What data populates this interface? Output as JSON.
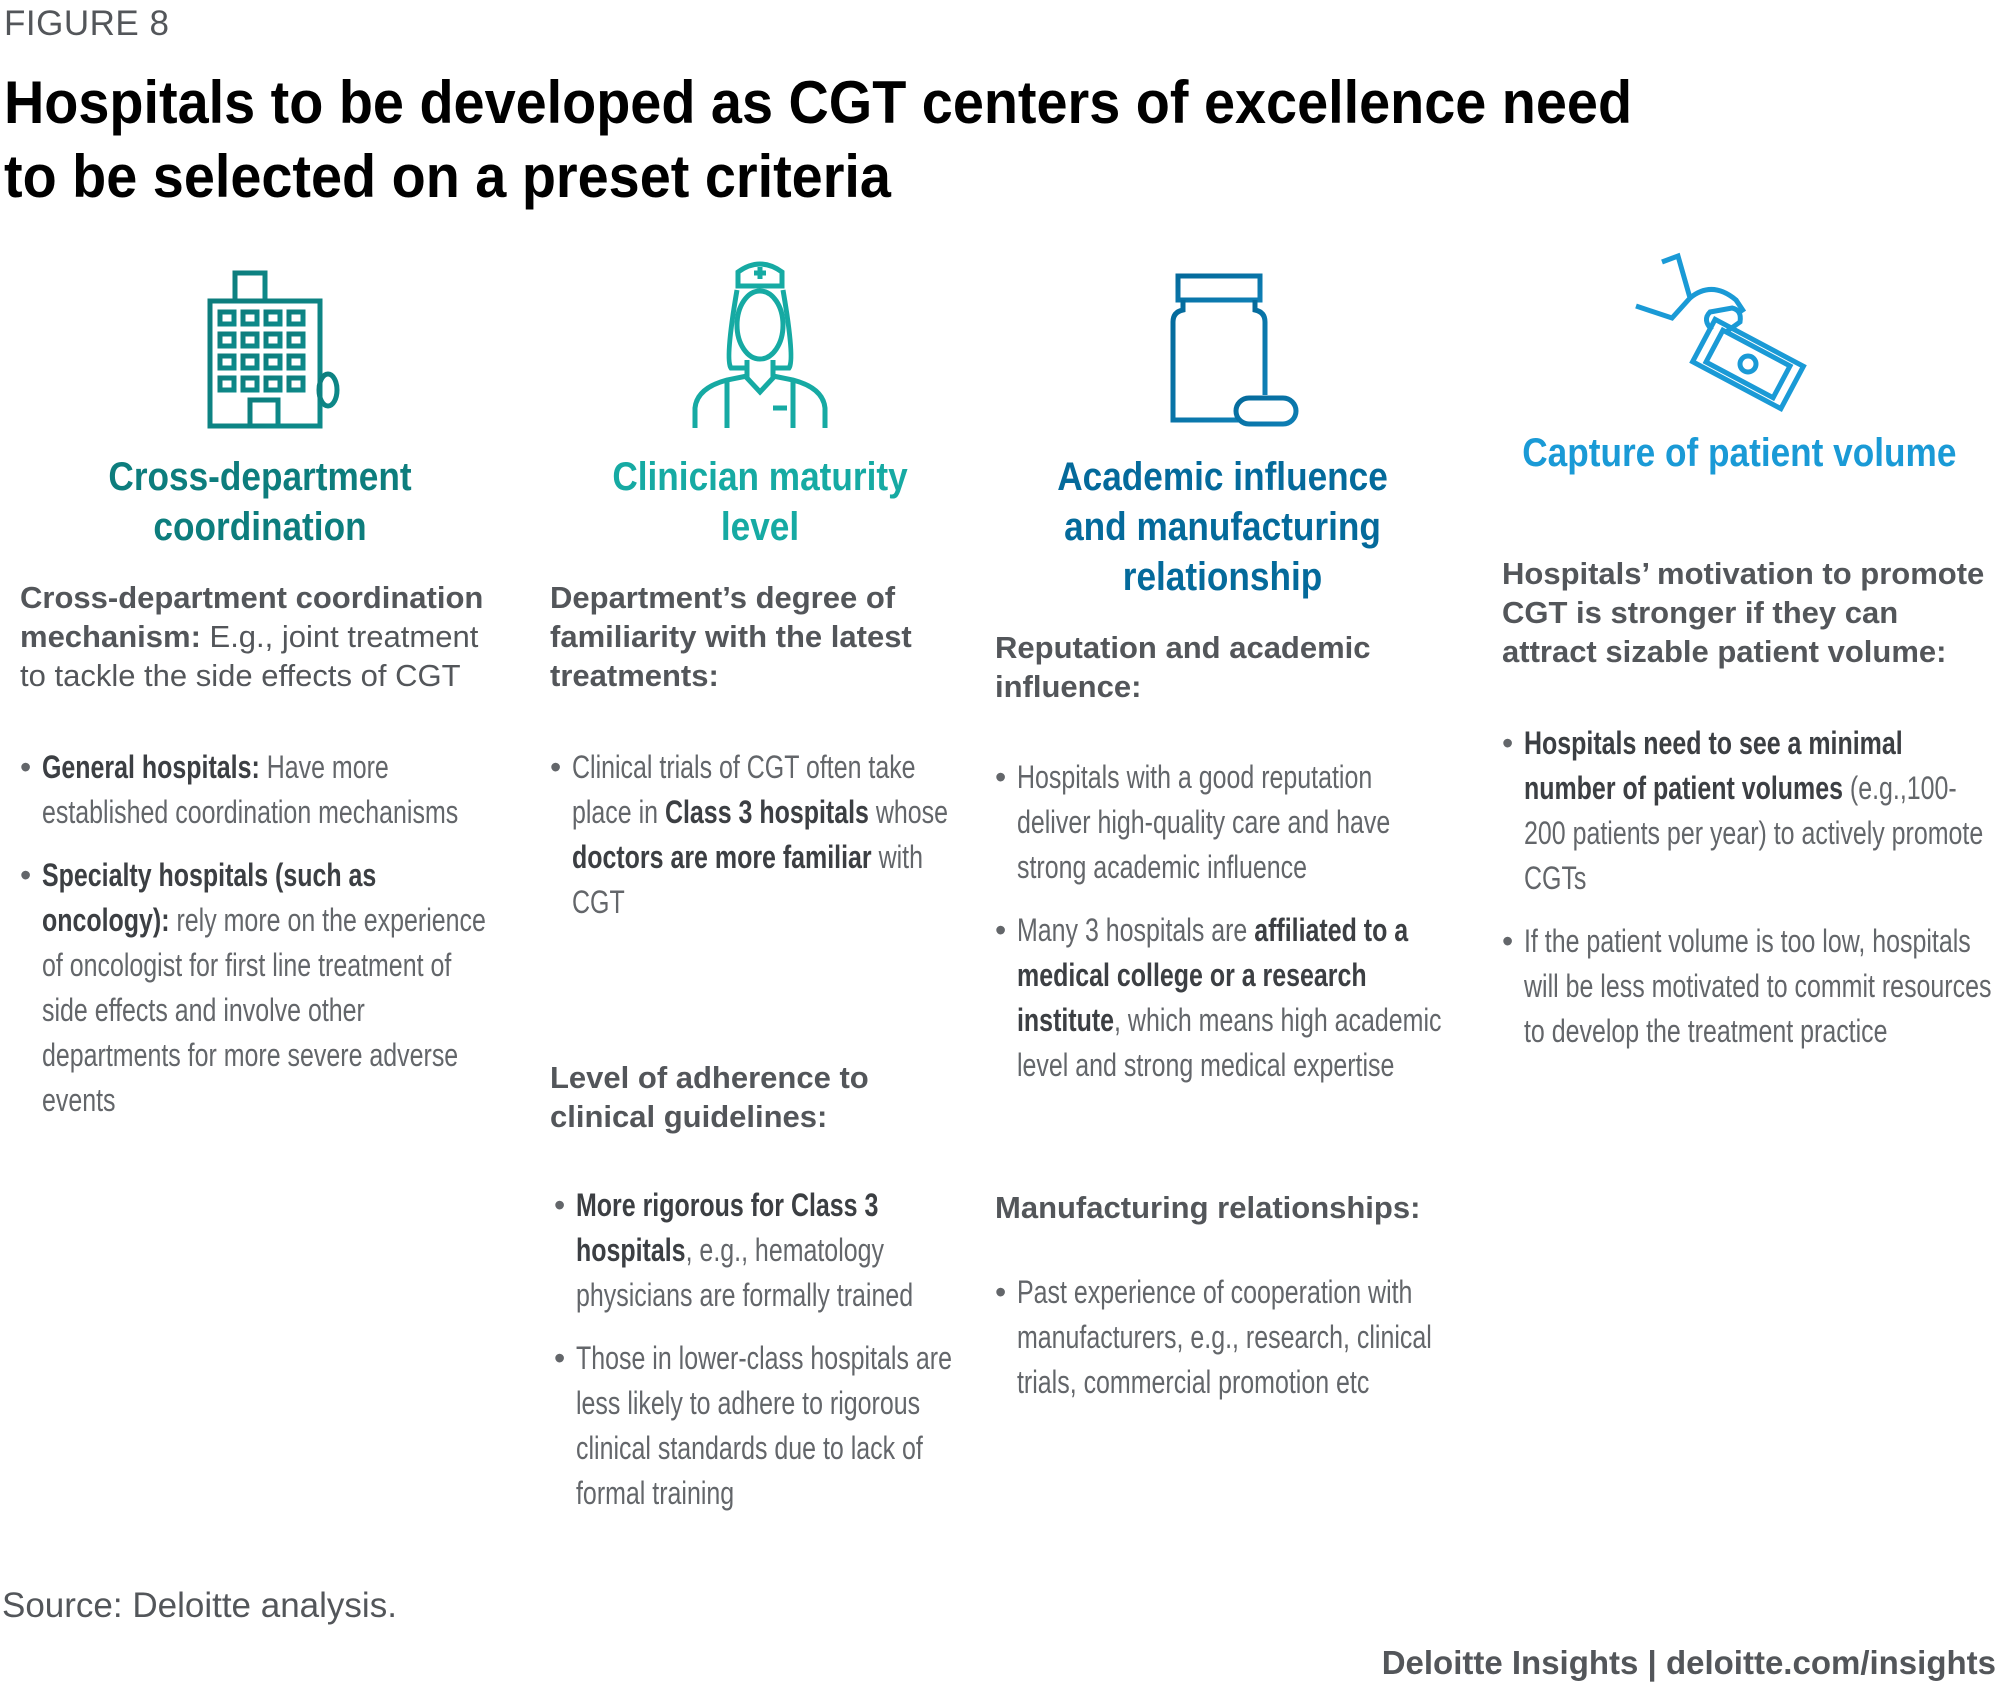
{
  "figure_label": "FIGURE 8",
  "title": "Hospitals to be developed as CGT centers of excellence need to be selected on a preset criteria",
  "colors": {
    "teal_dark": "#0d7d7d",
    "teal": "#16aaa3",
    "blue_dark": "#046a9b",
    "blue": "#1a9ad6",
    "text": "#53565a"
  },
  "columns": [
    {
      "icon": "hospital-building-icon",
      "title": "Cross-department coordination",
      "sections": [
        {
          "heading_bold": "Cross-department coordination mechanism:",
          "heading_light": " E.g., joint treatment to tackle the side effects of CGT",
          "bullets": [
            {
              "bold": "General hospitals:",
              "text": " Have more established coordination mechanisms"
            },
            {
              "bold": "Specialty hospitals (such as oncology):",
              "text": " rely more on the experience of oncologist for first line treatment of side effects and involve other departments for more severe adverse events"
            }
          ]
        }
      ]
    },
    {
      "icon": "nurse-icon",
      "title": "Clinician maturity level",
      "sections": [
        {
          "heading_bold": "Department’s degree of familiarity with the latest treatments:",
          "heading_light": "",
          "bullets": [
            {
              "pre": "Clinical trials of CGT often take place in ",
              "bold": "Class 3 hospitals",
              "mid": " whose ",
              "bold2": "doctors are more familiar",
              "text": " with CGT"
            }
          ]
        },
        {
          "heading_bold": "Level of adherence to clinical guidelines:",
          "heading_light": "",
          "bullets": [
            {
              "bold": "More rigorous for Class 3 hospitals",
              "text": ", e.g., hematology physicians are formally trained"
            },
            {
              "bold": "",
              "text": "Those in lower-class hospitals are less likely to adhere to rigorous clinical standards due to lack of formal training"
            }
          ]
        }
      ]
    },
    {
      "icon": "medicine-bottle-icon",
      "title": "Academic influence and manufacturing relationship",
      "sections": [
        {
          "heading_bold": "Reputation and academic influence:",
          "heading_light": "",
          "bullets": [
            {
              "bold": "",
              "text": "Hospitals with a good reputation deliver high-quality care and have strong academic influence"
            },
            {
              "pre": "Many 3 hospitals are ",
              "bold": "affiliated to a medical college or a research institute",
              "text": ", which means high academic level and strong medical expertise"
            }
          ]
        },
        {
          "heading_bold": "Manufacturing relationships:",
          "heading_light": "",
          "bullets": [
            {
              "bold": "",
              "text": "Past experience of cooperation with manufacturers, e.g., research, clinical trials, commercial promotion etc"
            }
          ]
        }
      ]
    },
    {
      "icon": "hand-money-icon",
      "title": "Capture of patient volume",
      "sections": [
        {
          "heading_bold": "Hospitals’ motivation to  promote CGT is stronger if they can attract sizable patient volume:",
          "heading_light": "",
          "bullets": [
            {
              "bold": "Hospitals need to see a minimal number of patient volumes",
              "text": " (e.g.,100-200 patients per year) to actively promote CGTs"
            },
            {
              "bold": "",
              "text": "If the patient volume is too low, hospitals will be less motivated to commit resources to develop the treatment practice"
            }
          ]
        }
      ]
    }
  ],
  "source": "Source: Deloitte analysis.",
  "footer": "Deloitte Insights | deloitte.com/insights"
}
